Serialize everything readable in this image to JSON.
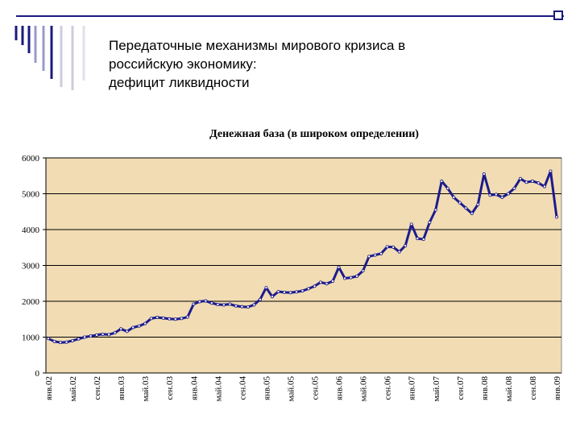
{
  "slide_title": [
    "Передаточные  механизмы мирового кризиса в",
    "российскую экономику:",
    "дефицит ликвидности"
  ],
  "chart_data": {
    "type": "line",
    "title": "Денежная база (в широком определении)",
    "categories": [
      "янв.02",
      null,
      null,
      null,
      "май.02",
      null,
      null,
      null,
      "сен.02",
      null,
      null,
      null,
      "янв.03",
      null,
      null,
      null,
      "май.03",
      null,
      null,
      null,
      "сен.03",
      null,
      null,
      null,
      "янв.04",
      null,
      null,
      null,
      "май.04",
      null,
      null,
      null,
      "сен.04",
      null,
      null,
      null,
      "янв.05",
      null,
      null,
      null,
      "май.05",
      null,
      null,
      null,
      "сен.05",
      null,
      null,
      null,
      "янв.06",
      null,
      null,
      null,
      "май.06",
      null,
      null,
      null,
      "сен.06",
      null,
      null,
      null,
      "янв.07",
      null,
      null,
      null,
      "май.07",
      null,
      null,
      null,
      "сен.07",
      null,
      null,
      null,
      "янв.08",
      null,
      null,
      null,
      "май.08",
      null,
      null,
      null,
      "сен.08",
      null,
      null,
      null,
      "янв.09"
    ],
    "series": [
      {
        "name": "Денежная база",
        "color": "#1c1c8c",
        "values": [
          960,
          880,
          850,
          860,
          900,
          950,
          1000,
          1030,
          1060,
          1080,
          1070,
          1120,
          1230,
          1160,
          1270,
          1310,
          1380,
          1520,
          1550,
          1530,
          1510,
          1500,
          1520,
          1560,
          1920,
          1990,
          2010,
          1950,
          1910,
          1900,
          1920,
          1870,
          1850,
          1840,
          1900,
          2050,
          2380,
          2130,
          2270,
          2250,
          2240,
          2260,
          2290,
          2350,
          2420,
          2530,
          2490,
          2560,
          2950,
          2640,
          2660,
          2700,
          2850,
          3250,
          3290,
          3330,
          3520,
          3510,
          3380,
          3550,
          4150,
          3750,
          3730,
          4200,
          4550,
          5350,
          5150,
          4900,
          4750,
          4600,
          4450,
          4700,
          5550,
          4960,
          4980,
          4900,
          5000,
          5150,
          5420,
          5320,
          5350,
          5300,
          5200,
          5630,
          4350
        ]
      }
    ],
    "ylim": [
      0,
      6000
    ],
    "yticks": [
      0,
      1000,
      2000,
      3000,
      4000,
      5000,
      6000
    ],
    "grid": true,
    "plot_background": "#f2dcb4"
  }
}
